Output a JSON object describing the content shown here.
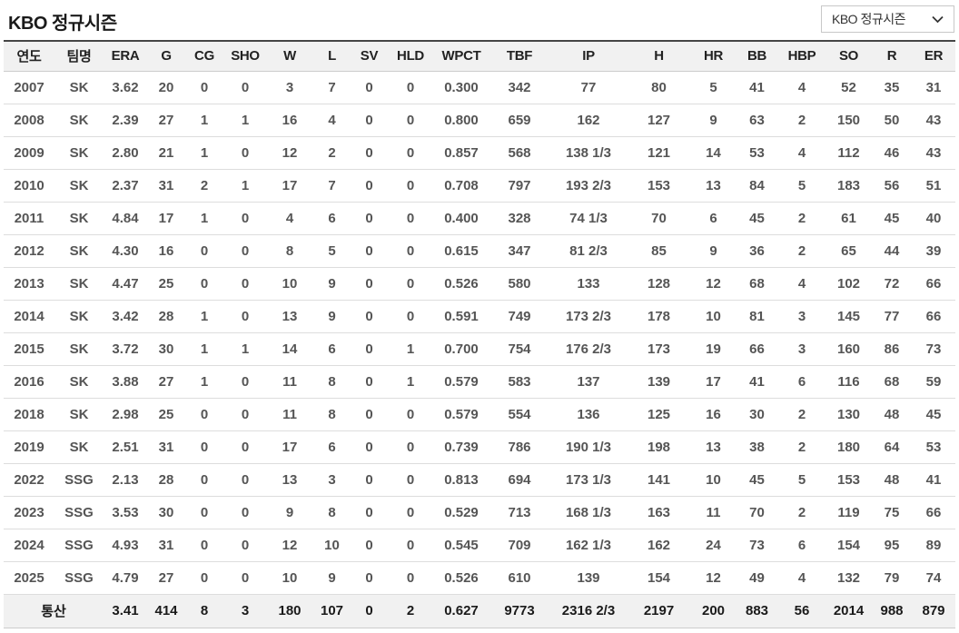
{
  "title": "KBO 정규시즌",
  "season_select": {
    "value": "KBO 정규시즌",
    "icon": "chevron-down-icon"
  },
  "colors": {
    "header_bg": "#f1f1f1",
    "header_top_border": "#454545",
    "row_border": "#dddddd",
    "data_text": "#555555",
    "header_text": "#222222",
    "total_bg": "#f1f1f1"
  },
  "table": {
    "columns": [
      "연도",
      "팀명",
      "ERA",
      "G",
      "CG",
      "SHO",
      "W",
      "L",
      "SV",
      "HLD",
      "WPCT",
      "TBF",
      "IP",
      "H",
      "HR",
      "BB",
      "HBP",
      "SO",
      "R",
      "ER"
    ],
    "rows": [
      [
        "2007",
        "SK",
        "3.62",
        "20",
        "0",
        "0",
        "3",
        "7",
        "0",
        "0",
        "0.300",
        "342",
        "77",
        "80",
        "5",
        "41",
        "4",
        "52",
        "35",
        "31"
      ],
      [
        "2008",
        "SK",
        "2.39",
        "27",
        "1",
        "1",
        "16",
        "4",
        "0",
        "0",
        "0.800",
        "659",
        "162",
        "127",
        "9",
        "63",
        "2",
        "150",
        "50",
        "43"
      ],
      [
        "2009",
        "SK",
        "2.80",
        "21",
        "1",
        "0",
        "12",
        "2",
        "0",
        "0",
        "0.857",
        "568",
        "138 1/3",
        "121",
        "14",
        "53",
        "4",
        "112",
        "46",
        "43"
      ],
      [
        "2010",
        "SK",
        "2.37",
        "31",
        "2",
        "1",
        "17",
        "7",
        "0",
        "0",
        "0.708",
        "797",
        "193 2/3",
        "153",
        "13",
        "84",
        "5",
        "183",
        "56",
        "51"
      ],
      [
        "2011",
        "SK",
        "4.84",
        "17",
        "1",
        "0",
        "4",
        "6",
        "0",
        "0",
        "0.400",
        "328",
        "74 1/3",
        "70",
        "6",
        "45",
        "2",
        "61",
        "45",
        "40"
      ],
      [
        "2012",
        "SK",
        "4.30",
        "16",
        "0",
        "0",
        "8",
        "5",
        "0",
        "0",
        "0.615",
        "347",
        "81 2/3",
        "85",
        "9",
        "36",
        "2",
        "65",
        "44",
        "39"
      ],
      [
        "2013",
        "SK",
        "4.47",
        "25",
        "0",
        "0",
        "10",
        "9",
        "0",
        "0",
        "0.526",
        "580",
        "133",
        "128",
        "12",
        "68",
        "4",
        "102",
        "72",
        "66"
      ],
      [
        "2014",
        "SK",
        "3.42",
        "28",
        "1",
        "0",
        "13",
        "9",
        "0",
        "0",
        "0.591",
        "749",
        "173 2/3",
        "178",
        "10",
        "81",
        "3",
        "145",
        "77",
        "66"
      ],
      [
        "2015",
        "SK",
        "3.72",
        "30",
        "1",
        "1",
        "14",
        "6",
        "0",
        "1",
        "0.700",
        "754",
        "176 2/3",
        "173",
        "19",
        "66",
        "3",
        "160",
        "86",
        "73"
      ],
      [
        "2016",
        "SK",
        "3.88",
        "27",
        "1",
        "0",
        "11",
        "8",
        "0",
        "1",
        "0.579",
        "583",
        "137",
        "139",
        "17",
        "41",
        "6",
        "116",
        "68",
        "59"
      ],
      [
        "2018",
        "SK",
        "2.98",
        "25",
        "0",
        "0",
        "11",
        "8",
        "0",
        "0",
        "0.579",
        "554",
        "136",
        "125",
        "16",
        "30",
        "2",
        "130",
        "48",
        "45"
      ],
      [
        "2019",
        "SK",
        "2.51",
        "31",
        "0",
        "0",
        "17",
        "6",
        "0",
        "0",
        "0.739",
        "786",
        "190 1/3",
        "198",
        "13",
        "38",
        "2",
        "180",
        "64",
        "53"
      ],
      [
        "2022",
        "SSG",
        "2.13",
        "28",
        "0",
        "0",
        "13",
        "3",
        "0",
        "0",
        "0.813",
        "694",
        "173 1/3",
        "141",
        "10",
        "45",
        "5",
        "153",
        "48",
        "41"
      ],
      [
        "2023",
        "SSG",
        "3.53",
        "30",
        "0",
        "0",
        "9",
        "8",
        "0",
        "0",
        "0.529",
        "713",
        "168 1/3",
        "163",
        "11",
        "70",
        "2",
        "119",
        "75",
        "66"
      ],
      [
        "2024",
        "SSG",
        "4.93",
        "31",
        "0",
        "0",
        "12",
        "10",
        "0",
        "0",
        "0.545",
        "709",
        "162 1/3",
        "162",
        "24",
        "73",
        "6",
        "154",
        "95",
        "89"
      ],
      [
        "2025",
        "SSG",
        "4.79",
        "27",
        "0",
        "0",
        "10",
        "9",
        "0",
        "0",
        "0.526",
        "610",
        "139",
        "154",
        "12",
        "49",
        "4",
        "132",
        "79",
        "74"
      ]
    ],
    "total": {
      "label": "통산",
      "values": [
        "3.41",
        "414",
        "8",
        "3",
        "180",
        "107",
        "0",
        "2",
        "0.627",
        "9773",
        "2316 2/3",
        "2197",
        "200",
        "883",
        "56",
        "2014",
        "988",
        "879"
      ]
    }
  }
}
